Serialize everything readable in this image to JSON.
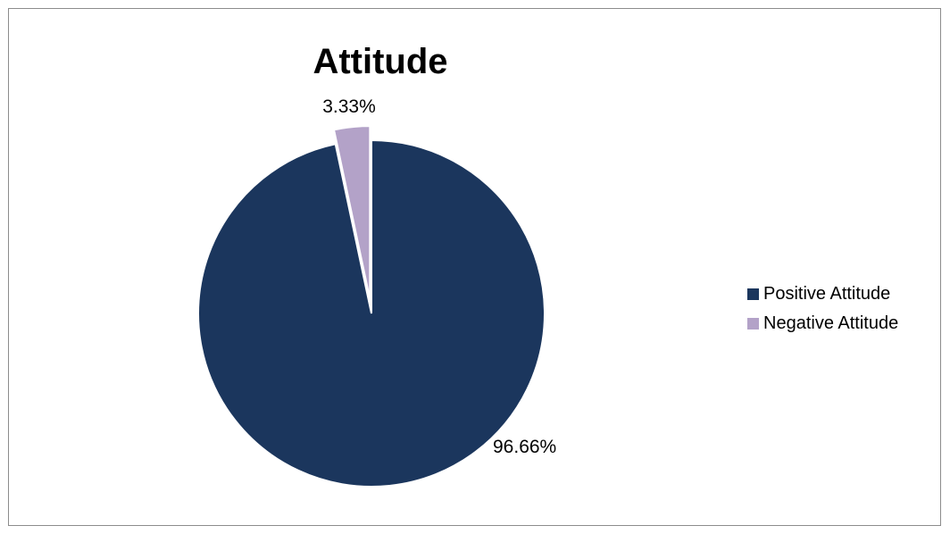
{
  "chart_data": {
    "type": "pie",
    "title": "Attitude",
    "categories": [
      "Positive Attitude",
      "Negative Attitude"
    ],
    "values": [
      96.66,
      3.33
    ],
    "data_labels": [
      "96.66%",
      "3.33%"
    ],
    "exploded": [
      "Negative Attitude"
    ],
    "colors": {
      "Positive Attitude": "#1b365d",
      "Negative Attitude": "#b3a2c8"
    },
    "legend_position": "right"
  }
}
